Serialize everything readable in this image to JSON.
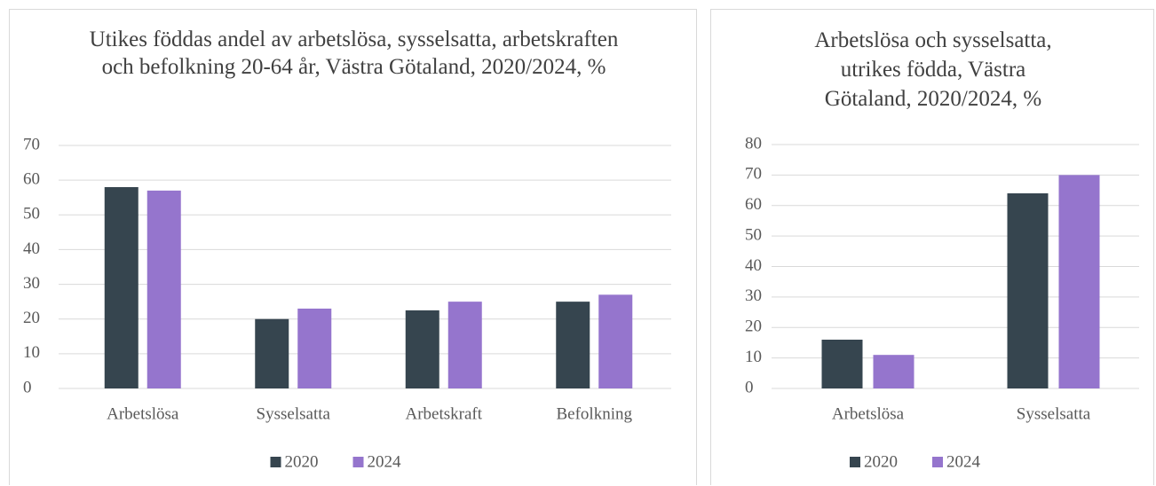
{
  "chart_data": [
    {
      "type": "bar",
      "title": "Utikes föddas andel av arbetslösa, sysselsatta, arbetskraften och befolkning 20-64 år, Västra Götaland, 2020/2024, %",
      "categories": [
        "Arbetslösa",
        "Sysselsatta",
        "Arbetskraft",
        "Befolkning"
      ],
      "series": [
        {
          "name": "2020",
          "color": "#36454f",
          "values": [
            58,
            20,
            22.5,
            25
          ]
        },
        {
          "name": "2024",
          "color": "#9575cd",
          "values": [
            57,
            23,
            25,
            27
          ]
        }
      ],
      "ylim": [
        0,
        70
      ],
      "yticks": [
        0,
        10,
        20,
        30,
        40,
        50,
        60,
        70
      ],
      "grid": true,
      "legend": "bottom"
    },
    {
      "type": "bar",
      "title": "Arbetslösa och sysselsatta, utrikes födda, Västra Götaland, 2020/2024, %",
      "categories": [
        "Arbetslösa",
        "Sysselsatta"
      ],
      "series": [
        {
          "name": "2020",
          "color": "#36454f",
          "values": [
            16,
            64
          ]
        },
        {
          "name": "2024",
          "color": "#9575cd",
          "values": [
            11,
            70
          ]
        }
      ],
      "ylim": [
        0,
        80
      ],
      "yticks": [
        0,
        10,
        20,
        30,
        40,
        50,
        60,
        70,
        80
      ],
      "grid": true,
      "legend": "bottom"
    }
  ]
}
